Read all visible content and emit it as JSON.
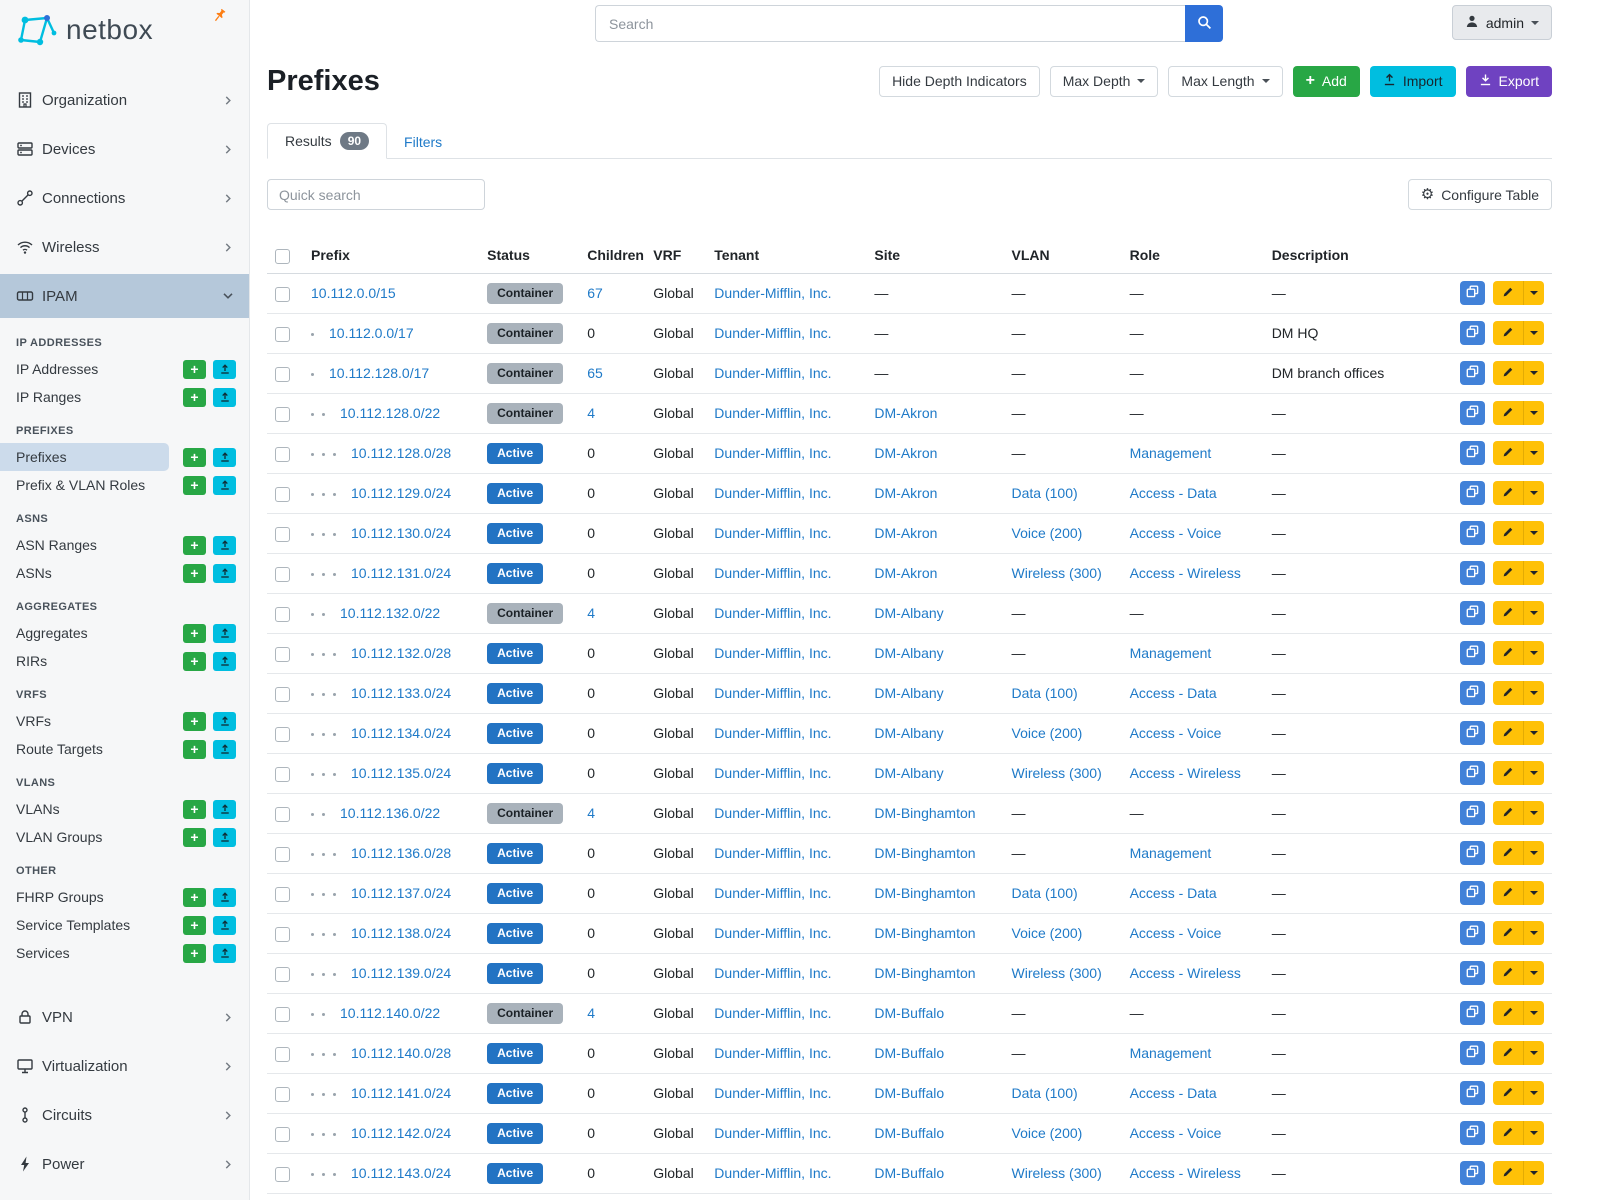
{
  "brand": {
    "name": "netbox"
  },
  "topbar": {
    "search_placeholder": "Search",
    "user_label": "admin"
  },
  "colors": {
    "brand_cyan": "#00bee0",
    "link_blue": "#1f7ac8",
    "active_badge_blue": "#2273c3",
    "container_badge_gray": "#a9b2bb",
    "add_green": "#28a745",
    "export_purple": "#6f42c1",
    "edit_yellow": "#ffc107",
    "copy_blue": "#4181d8",
    "nav_active_bg": "#b5c8da",
    "subnav_active_bg": "#ccdbeb",
    "pin_orange": "#fd7e14"
  },
  "icons": {
    "search": "search-icon",
    "user": "user-icon",
    "pin": "pin-icon",
    "gear": "gear-icon",
    "plus": "plus-icon",
    "upload": "upload-icon",
    "download": "download-icon",
    "copy": "copy-icon",
    "edit": "pencil-icon",
    "dropdown": "chevron-down-icon"
  },
  "sidebar": {
    "top_items": [
      {
        "label": "Organization",
        "icon": "building-icon"
      },
      {
        "label": "Devices",
        "icon": "devices-icon"
      },
      {
        "label": "Connections",
        "icon": "connections-icon"
      },
      {
        "label": "Wireless",
        "icon": "wireless-icon"
      },
      {
        "label": "IPAM",
        "icon": "ipam-icon",
        "active": true,
        "expanded": true
      }
    ],
    "ipam_groups": [
      {
        "heading": "IP ADDRESSES",
        "items": [
          {
            "label": "IP Addresses"
          },
          {
            "label": "IP Ranges"
          }
        ]
      },
      {
        "heading": "PREFIXES",
        "items": [
          {
            "label": "Prefixes",
            "active": true
          },
          {
            "label": "Prefix & VLAN Roles"
          }
        ]
      },
      {
        "heading": "ASNS",
        "items": [
          {
            "label": "ASN Ranges"
          },
          {
            "label": "ASNs"
          }
        ]
      },
      {
        "heading": "AGGREGATES",
        "items": [
          {
            "label": "Aggregates"
          },
          {
            "label": "RIRs"
          }
        ]
      },
      {
        "heading": "VRFS",
        "items": [
          {
            "label": "VRFs"
          },
          {
            "label": "Route Targets"
          }
        ]
      },
      {
        "heading": "VLANS",
        "items": [
          {
            "label": "VLANs"
          },
          {
            "label": "VLAN Groups"
          }
        ]
      },
      {
        "heading": "OTHER",
        "items": [
          {
            "label": "FHRP Groups"
          },
          {
            "label": "Service Templates"
          },
          {
            "label": "Services"
          }
        ]
      }
    ],
    "bottom_items": [
      {
        "label": "VPN",
        "icon": "vpn-icon"
      },
      {
        "label": "Virtualization",
        "icon": "virtualization-icon"
      },
      {
        "label": "Circuits",
        "icon": "circuits-icon"
      },
      {
        "label": "Power",
        "icon": "power-icon"
      }
    ]
  },
  "page": {
    "title": "Prefixes",
    "toolbar": {
      "hide_depth": "Hide Depth Indicators",
      "max_depth": "Max Depth",
      "max_length": "Max Length",
      "add": "Add",
      "import": "Import",
      "export": "Export"
    },
    "tabs": {
      "results": "Results",
      "results_count": "90",
      "filters": "Filters"
    },
    "quick_search_placeholder": "Quick search",
    "configure_table": "Configure Table"
  },
  "table": {
    "columns": [
      "Prefix",
      "Status",
      "Children",
      "VRF",
      "Tenant",
      "Site",
      "VLAN",
      "Role",
      "Description"
    ],
    "rows": [
      {
        "depth": 0,
        "prefix": "10.112.0.0/15",
        "status": "Container",
        "children": "67",
        "vrf": "Global",
        "tenant": "Dunder-Mifflin, Inc.",
        "site": "—",
        "vlan": "—",
        "role": "—",
        "description": "—"
      },
      {
        "depth": 1,
        "prefix": "10.112.0.0/17",
        "status": "Container",
        "children": "0",
        "vrf": "Global",
        "tenant": "Dunder-Mifflin, Inc.",
        "site": "—",
        "vlan": "—",
        "role": "—",
        "description": "DM HQ"
      },
      {
        "depth": 1,
        "prefix": "10.112.128.0/17",
        "status": "Container",
        "children": "65",
        "vrf": "Global",
        "tenant": "Dunder-Mifflin, Inc.",
        "site": "—",
        "vlan": "—",
        "role": "—",
        "description": "DM branch offices"
      },
      {
        "depth": 2,
        "prefix": "10.112.128.0/22",
        "status": "Container",
        "children": "4",
        "vrf": "Global",
        "tenant": "Dunder-Mifflin, Inc.",
        "site": "DM-Akron",
        "vlan": "—",
        "role": "—",
        "description": "—"
      },
      {
        "depth": 3,
        "prefix": "10.112.128.0/28",
        "status": "Active",
        "children": "0",
        "vrf": "Global",
        "tenant": "Dunder-Mifflin, Inc.",
        "site": "DM-Akron",
        "vlan": "—",
        "role": "Management",
        "description": "—"
      },
      {
        "depth": 3,
        "prefix": "10.112.129.0/24",
        "status": "Active",
        "children": "0",
        "vrf": "Global",
        "tenant": "Dunder-Mifflin, Inc.",
        "site": "DM-Akron",
        "vlan": "Data (100)",
        "role": "Access - Data",
        "description": "—"
      },
      {
        "depth": 3,
        "prefix": "10.112.130.0/24",
        "status": "Active",
        "children": "0",
        "vrf": "Global",
        "tenant": "Dunder-Mifflin, Inc.",
        "site": "DM-Akron",
        "vlan": "Voice (200)",
        "role": "Access - Voice",
        "description": "—"
      },
      {
        "depth": 3,
        "prefix": "10.112.131.0/24",
        "status": "Active",
        "children": "0",
        "vrf": "Global",
        "tenant": "Dunder-Mifflin, Inc.",
        "site": "DM-Akron",
        "vlan": "Wireless (300)",
        "role": "Access - Wireless",
        "description": "—"
      },
      {
        "depth": 2,
        "prefix": "10.112.132.0/22",
        "status": "Container",
        "children": "4",
        "vrf": "Global",
        "tenant": "Dunder-Mifflin, Inc.",
        "site": "DM-Albany",
        "vlan": "—",
        "role": "—",
        "description": "—"
      },
      {
        "depth": 3,
        "prefix": "10.112.132.0/28",
        "status": "Active",
        "children": "0",
        "vrf": "Global",
        "tenant": "Dunder-Mifflin, Inc.",
        "site": "DM-Albany",
        "vlan": "—",
        "role": "Management",
        "description": "—"
      },
      {
        "depth": 3,
        "prefix": "10.112.133.0/24",
        "status": "Active",
        "children": "0",
        "vrf": "Global",
        "tenant": "Dunder-Mifflin, Inc.",
        "site": "DM-Albany",
        "vlan": "Data (100)",
        "role": "Access - Data",
        "description": "—"
      },
      {
        "depth": 3,
        "prefix": "10.112.134.0/24",
        "status": "Active",
        "children": "0",
        "vrf": "Global",
        "tenant": "Dunder-Mifflin, Inc.",
        "site": "DM-Albany",
        "vlan": "Voice (200)",
        "role": "Access - Voice",
        "description": "—"
      },
      {
        "depth": 3,
        "prefix": "10.112.135.0/24",
        "status": "Active",
        "children": "0",
        "vrf": "Global",
        "tenant": "Dunder-Mifflin, Inc.",
        "site": "DM-Albany",
        "vlan": "Wireless (300)",
        "role": "Access - Wireless",
        "description": "—"
      },
      {
        "depth": 2,
        "prefix": "10.112.136.0/22",
        "status": "Container",
        "children": "4",
        "vrf": "Global",
        "tenant": "Dunder-Mifflin, Inc.",
        "site": "DM-Binghamton",
        "vlan": "—",
        "role": "—",
        "description": "—"
      },
      {
        "depth": 3,
        "prefix": "10.112.136.0/28",
        "status": "Active",
        "children": "0",
        "vrf": "Global",
        "tenant": "Dunder-Mifflin, Inc.",
        "site": "DM-Binghamton",
        "vlan": "—",
        "role": "Management",
        "description": "—"
      },
      {
        "depth": 3,
        "prefix": "10.112.137.0/24",
        "status": "Active",
        "children": "0",
        "vrf": "Global",
        "tenant": "Dunder-Mifflin, Inc.",
        "site": "DM-Binghamton",
        "vlan": "Data (100)",
        "role": "Access - Data",
        "description": "—"
      },
      {
        "depth": 3,
        "prefix": "10.112.138.0/24",
        "status": "Active",
        "children": "0",
        "vrf": "Global",
        "tenant": "Dunder-Mifflin, Inc.",
        "site": "DM-Binghamton",
        "vlan": "Voice (200)",
        "role": "Access - Voice",
        "description": "—"
      },
      {
        "depth": 3,
        "prefix": "10.112.139.0/24",
        "status": "Active",
        "children": "0",
        "vrf": "Global",
        "tenant": "Dunder-Mifflin, Inc.",
        "site": "DM-Binghamton",
        "vlan": "Wireless (300)",
        "role": "Access - Wireless",
        "description": "—"
      },
      {
        "depth": 2,
        "prefix": "10.112.140.0/22",
        "status": "Container",
        "children": "4",
        "vrf": "Global",
        "tenant": "Dunder-Mifflin, Inc.",
        "site": "DM-Buffalo",
        "vlan": "—",
        "role": "—",
        "description": "—"
      },
      {
        "depth": 3,
        "prefix": "10.112.140.0/28",
        "status": "Active",
        "children": "0",
        "vrf": "Global",
        "tenant": "Dunder-Mifflin, Inc.",
        "site": "DM-Buffalo",
        "vlan": "—",
        "role": "Management",
        "description": "—"
      },
      {
        "depth": 3,
        "prefix": "10.112.141.0/24",
        "status": "Active",
        "children": "0",
        "vrf": "Global",
        "tenant": "Dunder-Mifflin, Inc.",
        "site": "DM-Buffalo",
        "vlan": "Data (100)",
        "role": "Access - Data",
        "description": "—"
      },
      {
        "depth": 3,
        "prefix": "10.112.142.0/24",
        "status": "Active",
        "children": "0",
        "vrf": "Global",
        "tenant": "Dunder-Mifflin, Inc.",
        "site": "DM-Buffalo",
        "vlan": "Voice (200)",
        "role": "Access - Voice",
        "description": "—"
      },
      {
        "depth": 3,
        "prefix": "10.112.143.0/24",
        "status": "Active",
        "children": "0",
        "vrf": "Global",
        "tenant": "Dunder-Mifflin, Inc.",
        "site": "DM-Buffalo",
        "vlan": "Wireless (300)",
        "role": "Access - Wireless",
        "description": "—"
      }
    ]
  }
}
